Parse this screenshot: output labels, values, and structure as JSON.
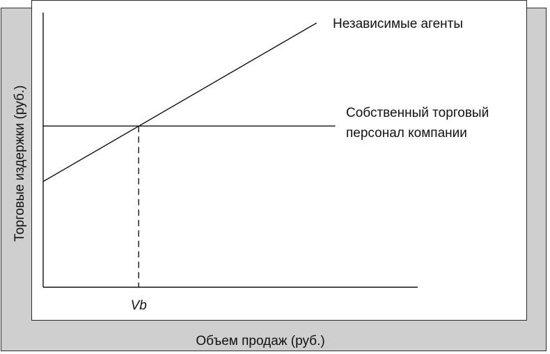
{
  "chart_data": {
    "type": "line",
    "xlabel": "Объем продаж (руб.)",
    "ylabel": "Торговые издержки (руб.)",
    "x_tick_label": "Vb",
    "xlim": [
      0,
      100
    ],
    "ylim": [
      0,
      100
    ],
    "grid": false,
    "series": [
      {
        "name": "Независимые агенты",
        "x": [
          0,
          73
        ],
        "y": [
          40,
          100
        ]
      },
      {
        "name": "Собственный торговый персонал компании",
        "name_lines": [
          "Собственный торговый",
          "персонал компании"
        ],
        "x": [
          0,
          78
        ],
        "y": [
          61,
          61
        ]
      }
    ],
    "breakeven": {
      "x": 25.5,
      "y": 61
    },
    "colors": {
      "line": "#111111",
      "shadow": "#cfcfcf",
      "frame": "#2a2a2a"
    }
  }
}
